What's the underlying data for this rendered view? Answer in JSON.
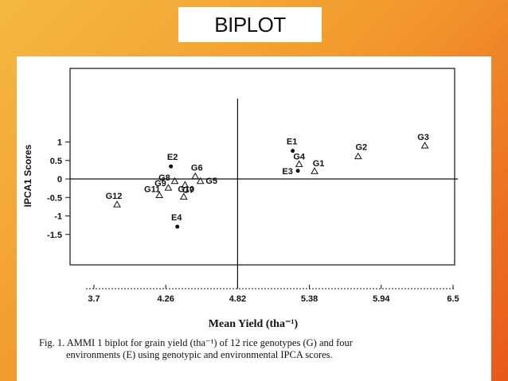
{
  "slide": {
    "title": "BIPLOT"
  },
  "caption": {
    "line1": "Fig. 1. AMMI 1 biplot for grain yield (tha⁻¹) of 12 rice genotypes  (G)  and four",
    "line2": "environments (E) using genotypic and environmental IPCA scores."
  },
  "chart_data": {
    "type": "scatter",
    "xlabel": "Mean Yield (tha⁻¹)",
    "ylabel": "IPCA1 Scores",
    "xlim": [
      3.6,
      6.55
    ],
    "ylim": [
      -1.5,
      1.3
    ],
    "x_ticks": [
      "3.7",
      "4.26",
      "4.82",
      "5.38",
      "5.94",
      "6.5"
    ],
    "y_ticks": [
      "1",
      "0.5",
      "0",
      "-0.5",
      "-1",
      "-1.5"
    ],
    "reference_lines": {
      "x": 4.82,
      "y": 0
    },
    "genotypes": [
      {
        "label": "G1",
        "x": 5.42,
        "y": 0.21
      },
      {
        "label": "G2",
        "x": 5.76,
        "y": 0.61
      },
      {
        "label": "G3",
        "x": 6.28,
        "y": 0.9
      },
      {
        "label": "G4",
        "x": 5.3,
        "y": 0.4
      },
      {
        "label": "G5",
        "x": 4.53,
        "y": -0.06
      },
      {
        "label": "G6",
        "x": 4.49,
        "y": 0.07
      },
      {
        "label": "G7",
        "x": 4.41,
        "y": -0.16
      },
      {
        "label": "G8",
        "x": 4.33,
        "y": -0.06
      },
      {
        "label": "G9",
        "x": 4.28,
        "y": -0.24
      },
      {
        "label": "G10",
        "x": 4.4,
        "y": -0.48
      },
      {
        "label": "G11",
        "x": 4.21,
        "y": -0.44
      },
      {
        "label": "G12",
        "x": 3.88,
        "y": -0.69
      }
    ],
    "environments": [
      {
        "label": "E1",
        "x": 5.25,
        "y": 0.76
      },
      {
        "label": "E2",
        "x": 4.3,
        "y": 0.34
      },
      {
        "label": "E3",
        "x": 5.29,
        "y": 0.22
      },
      {
        "label": "E4",
        "x": 4.35,
        "y": -1.29
      }
    ]
  }
}
